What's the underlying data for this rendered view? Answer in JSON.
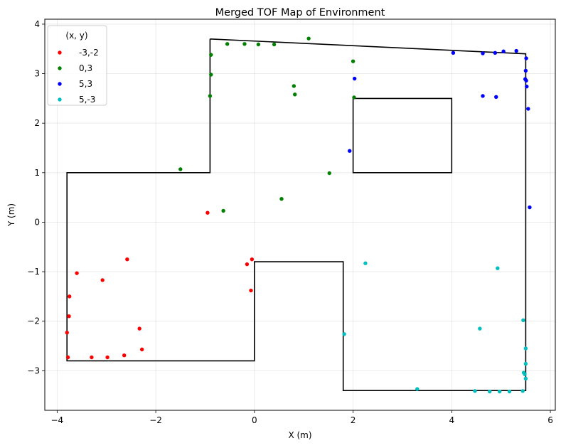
{
  "chart_data": {
    "type": "scatter",
    "title": "Merged TOF Map of Environment",
    "xlabel": "X (m)",
    "ylabel": "Y (m)",
    "xlim": [
      -4.25,
      6.1
    ],
    "ylim": [
      -3.8,
      4.1
    ],
    "xticks": [
      -4,
      -2,
      0,
      2,
      4,
      6
    ],
    "yticks": [
      -3,
      -2,
      -1,
      0,
      1,
      2,
      3,
      4
    ],
    "tick_labels_x": [
      "−4",
      "−2",
      "0",
      "2",
      "4",
      "6"
    ],
    "tick_labels_y": [
      "−3",
      "−2",
      "−1",
      "0",
      "1",
      "2",
      "3",
      "4"
    ],
    "grid": true,
    "legend_title": "(x, y)",
    "legend_position": "top-left",
    "map_outline": {
      "color": "#000000",
      "outer": [
        [
          -0.9,
          3.7
        ],
        [
          5.5,
          3.4
        ],
        [
          5.5,
          -3.4
        ],
        [
          1.8,
          -3.4
        ],
        [
          1.8,
          -0.8
        ],
        [
          0,
          -0.8
        ],
        [
          0,
          -2.8
        ],
        [
          -3.8,
          -2.8
        ],
        [
          -3.8,
          1.0
        ],
        [
          -0.9,
          1.0
        ],
        [
          -0.9,
          3.7
        ]
      ],
      "inner": [
        [
          2.0,
          2.5
        ],
        [
          4.0,
          2.5
        ],
        [
          4.0,
          1.0
        ],
        [
          2.0,
          1.0
        ],
        [
          2.0,
          2.5
        ]
      ]
    },
    "series": [
      {
        "name": "-3,-2",
        "color": "#ff0000",
        "points": [
          [
            -3.78,
            -2.73
          ],
          [
            -3.8,
            -2.23
          ],
          [
            -3.76,
            -1.9
          ],
          [
            -3.75,
            -1.5
          ],
          [
            -3.6,
            -1.03
          ],
          [
            -3.3,
            -2.73
          ],
          [
            -3.08,
            -1.17
          ],
          [
            -2.98,
            -2.73
          ],
          [
            -2.64,
            -2.69
          ],
          [
            -2.58,
            -0.75
          ],
          [
            -2.33,
            -2.15
          ],
          [
            -2.28,
            -2.57
          ],
          [
            -0.95,
            0.19
          ],
          [
            -0.15,
            -0.85
          ],
          [
            -0.05,
            -0.75
          ],
          [
            -0.07,
            -1.38
          ]
        ]
      },
      {
        "name": "0,3",
        "color": "#008000",
        "points": [
          [
            -1.5,
            1.07
          ],
          [
            -0.9,
            2.55
          ],
          [
            -0.88,
            2.98
          ],
          [
            -0.88,
            3.38
          ],
          [
            -0.55,
            3.6
          ],
          [
            -0.2,
            3.6
          ],
          [
            0.08,
            3.59
          ],
          [
            0.4,
            3.59
          ],
          [
            1.1,
            3.71
          ],
          [
            -0.63,
            0.23
          ],
          [
            0.55,
            0.47
          ],
          [
            0.8,
            2.75
          ],
          [
            0.82,
            2.58
          ],
          [
            1.52,
            0.99
          ],
          [
            2.0,
            3.25
          ],
          [
            2.02,
            2.52
          ]
        ]
      },
      {
        "name": "5,3",
        "color": "#0000ff",
        "points": [
          [
            4.03,
            3.42
          ],
          [
            4.63,
            3.41
          ],
          [
            4.88,
            3.42
          ],
          [
            5.05,
            3.45
          ],
          [
            5.31,
            3.46
          ],
          [
            5.51,
            3.31
          ],
          [
            5.5,
            3.06
          ],
          [
            5.49,
            2.89
          ],
          [
            5.51,
            2.86
          ],
          [
            5.52,
            2.74
          ],
          [
            5.55,
            2.29
          ],
          [
            5.58,
            0.3
          ],
          [
            4.63,
            2.55
          ],
          [
            4.9,
            2.53
          ],
          [
            2.03,
            2.9
          ],
          [
            1.93,
            1.44
          ]
        ]
      },
      {
        "name": "5,-3",
        "color": "#00bfbf",
        "points": [
          [
            2.25,
            -0.83
          ],
          [
            1.82,
            -2.26
          ],
          [
            3.3,
            -3.37
          ],
          [
            4.47,
            -3.41
          ],
          [
            4.77,
            -3.42
          ],
          [
            4.97,
            -3.42
          ],
          [
            5.17,
            -3.42
          ],
          [
            5.44,
            -3.41
          ],
          [
            4.57,
            -2.15
          ],
          [
            4.93,
            -0.93
          ],
          [
            5.45,
            -1.98
          ],
          [
            5.5,
            -2.55
          ],
          [
            5.5,
            -2.86
          ],
          [
            5.46,
            -3.04
          ],
          [
            5.48,
            -3.07
          ],
          [
            5.5,
            -3.16
          ]
        ]
      }
    ]
  }
}
